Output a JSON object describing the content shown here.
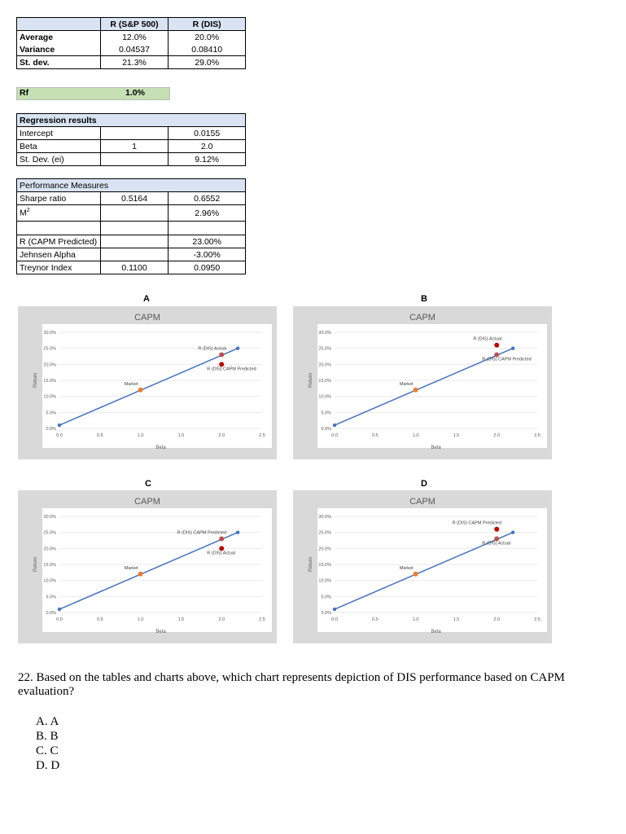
{
  "stats_table": {
    "col1": "R (S&P 500)",
    "col2": "R (DIS)",
    "rows": [
      {
        "label": "Average",
        "sp": "12.0%",
        "dis": "20.0%"
      },
      {
        "label": "Variance",
        "sp": "0.04537",
        "dis": "0.08410"
      },
      {
        "label": "St. dev.",
        "sp": "21.3%",
        "dis": "29.0%"
      }
    ]
  },
  "rf": {
    "label": "Rf",
    "value": "1.0%"
  },
  "regression": {
    "title": "Regression results",
    "rows": [
      {
        "label": "Intercept",
        "sp": "",
        "dis": "0.0155"
      },
      {
        "label": "Beta",
        "sp": "1",
        "dis": "2.0"
      },
      {
        "label": "St. Dev. (ei)",
        "sp": "",
        "dis": "9.12%"
      }
    ]
  },
  "performance": {
    "title": "Performance Measures",
    "rows": [
      {
        "label": "Sharpe ratio",
        "sp": "0.5164",
        "dis": "0.6552"
      },
      {
        "label": "M",
        "sup": "2",
        "sp": "",
        "dis": "2.96%"
      }
    ],
    "rows2": [
      {
        "label": "R (CAPM Predicted)",
        "sp": "",
        "dis": "23.00%"
      },
      {
        "label": "Jehnsen Alpha",
        "sp": "",
        "dis": "-3.00%"
      },
      {
        "label": "Treynor Index",
        "sp": "0.1100",
        "dis": "0.0950"
      }
    ]
  },
  "chart_data": [
    {
      "letter": "A",
      "type": "scatter",
      "title": "CAPM",
      "xlabel": "Beta",
      "ylabel": "Return",
      "xlim": [
        0,
        2.5
      ],
      "ylim": [
        0,
        0.3
      ],
      "xticks": [
        "0.0",
        "0.5",
        "1.0",
        "1.5",
        "2.0",
        "2.5"
      ],
      "yticks": [
        "0.0%",
        "5.0%",
        "10.0%",
        "15.0%",
        "20.0%",
        "25.0%",
        "30.0%"
      ],
      "line": {
        "x": [
          0,
          2.2
        ],
        "y": [
          0.01,
          0.25
        ]
      },
      "points": [
        {
          "x": 1.0,
          "y": 0.12,
          "color": "#ed7d31",
          "label": "Market"
        },
        {
          "x": 2.0,
          "y": 0.23,
          "color": "#c0504d",
          "label": "R (DIS) Actual"
        },
        {
          "x": 2.0,
          "y": 0.2,
          "color": "#c00000",
          "label": "R (DIS) CAPM Predicted"
        }
      ]
    },
    {
      "letter": "B",
      "type": "scatter",
      "title": "CAPM",
      "xlabel": "Beta",
      "ylabel": "Return",
      "xlim": [
        0,
        2.5
      ],
      "ylim": [
        0,
        0.3
      ],
      "xticks": [
        "0.0",
        "0.5",
        "1.0",
        "1.5",
        "2.0",
        "2.5"
      ],
      "yticks": [
        "0.0%",
        "5.0%",
        "10.0%",
        "15.0%",
        "20.0%",
        "25.0%",
        "30.0%"
      ],
      "line": {
        "x": [
          0,
          2.2
        ],
        "y": [
          0.01,
          0.25
        ]
      },
      "points": [
        {
          "x": 1.0,
          "y": 0.12,
          "color": "#ed7d31",
          "label": "Market"
        },
        {
          "x": 2.0,
          "y": 0.26,
          "color": "#c00000",
          "label": "R (DIS) Actual"
        },
        {
          "x": 2.0,
          "y": 0.23,
          "color": "#c0504d",
          "label": "R (DIS) CAPM Predicted"
        }
      ]
    },
    {
      "letter": "C",
      "type": "scatter",
      "title": "CAPM",
      "xlabel": "Beta",
      "ylabel": "Return",
      "xlim": [
        0,
        2.5
      ],
      "ylim": [
        0,
        0.3
      ],
      "xticks": [
        "0.0",
        "0.5",
        "1.0",
        "1.5",
        "2.0",
        "2.5"
      ],
      "yticks": [
        "0.0%",
        "5.0%",
        "10.0%",
        "15.0%",
        "20.0%",
        "25.0%",
        "30.0%"
      ],
      "line": {
        "x": [
          0,
          2.2
        ],
        "y": [
          0.01,
          0.25
        ]
      },
      "points": [
        {
          "x": 1.0,
          "y": 0.12,
          "color": "#ed7d31",
          "label": "Market"
        },
        {
          "x": 2.0,
          "y": 0.23,
          "color": "#c0504d",
          "label": "R (DIS) CAPM Predicted"
        },
        {
          "x": 2.0,
          "y": 0.2,
          "color": "#c00000",
          "label": "R (DIS) Actual"
        }
      ]
    },
    {
      "letter": "D",
      "type": "scatter",
      "title": "CAPM",
      "xlabel": "Beta",
      "ylabel": "Return",
      "xlim": [
        0,
        2.5
      ],
      "ylim": [
        0,
        0.3
      ],
      "xticks": [
        "0.0",
        "0.5",
        "1.0",
        "1.5",
        "2.0",
        "2.5"
      ],
      "yticks": [
        "0.0%",
        "5.0%",
        "10.0%",
        "15.0%",
        "20.0%",
        "25.0%",
        "30.0%"
      ],
      "line": {
        "x": [
          0,
          2.2
        ],
        "y": [
          0.01,
          0.25
        ]
      },
      "points": [
        {
          "x": 1.0,
          "y": 0.12,
          "color": "#ed7d31",
          "label": "Market"
        },
        {
          "x": 2.0,
          "y": 0.26,
          "color": "#c00000",
          "label": "R (DIS) CAPM Predicted"
        },
        {
          "x": 2.0,
          "y": 0.23,
          "color": "#c0504d",
          "label": "R (DIS) Actual"
        }
      ]
    }
  ],
  "question": {
    "text": "22. Based on the tables and charts above, which chart represents depiction of DIS performance based on CAPM evaluation?",
    "choices": [
      "A. A",
      "B. B",
      "C. C",
      "D. D"
    ]
  }
}
